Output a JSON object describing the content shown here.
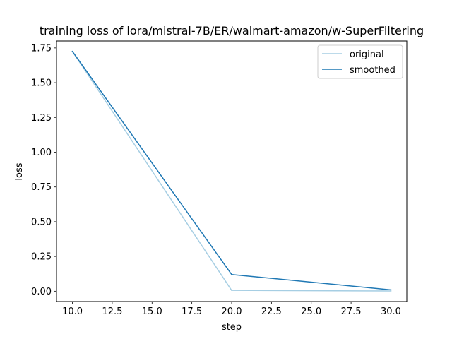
{
  "chart_data": {
    "type": "line",
    "title": "training loss of lora/mistral-7B/ER/walmart-amazon/w-SuperFiltering",
    "xlabel": "step",
    "ylabel": "loss",
    "xlim": [
      9.0,
      31.0
    ],
    "ylim": [
      -0.0745,
      1.8001
    ],
    "xticks": [
      10.0,
      12.5,
      15.0,
      17.5,
      20.0,
      22.5,
      25.0,
      27.5,
      30.0
    ],
    "xtick_labels": [
      "10.0",
      "12.5",
      "15.0",
      "17.5",
      "20.0",
      "22.5",
      "25.0",
      "27.5",
      "30.0"
    ],
    "yticks": [
      0.0,
      0.25,
      0.5,
      0.75,
      1.0,
      1.25,
      1.5,
      1.75
    ],
    "ytick_labels": [
      "0.00",
      "0.25",
      "0.50",
      "0.75",
      "1.00",
      "1.25",
      "1.50",
      "1.75"
    ],
    "grid": false,
    "legend_position": "top-right",
    "series": [
      {
        "name": "original",
        "color": "#a6cee3",
        "x": [
          10,
          20,
          30
        ],
        "y": [
          1.725,
          0.006,
          0.0015
        ]
      },
      {
        "name": "smoothed",
        "color": "#1f78b4",
        "x": [
          10,
          20,
          30
        ],
        "y": [
          1.725,
          0.12,
          0.01
        ]
      }
    ]
  }
}
